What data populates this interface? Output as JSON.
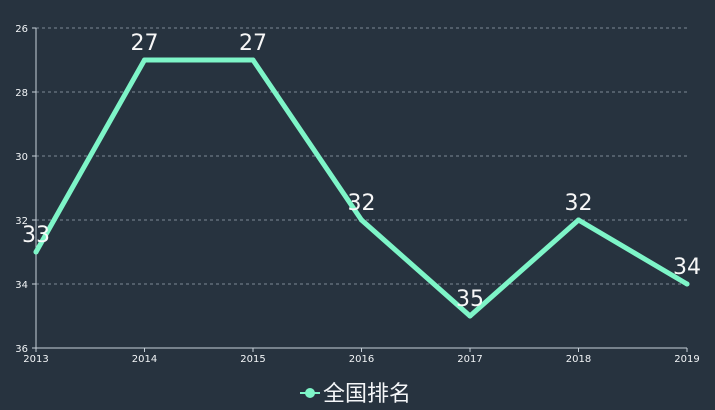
{
  "chart_data": {
    "type": "line",
    "x": [
      "2013",
      "2014",
      "2015",
      "2016",
      "2017",
      "2018",
      "2019"
    ],
    "y_ticks": [
      "26",
      "28",
      "30",
      "32",
      "34",
      "36"
    ],
    "ylim": [
      26,
      36
    ],
    "y_inverted": true,
    "grid": true,
    "legend_placement": "bottom-center",
    "series": [
      {
        "name": "全国排名",
        "values": [
          33,
          27,
          27,
          32,
          35,
          32,
          34
        ],
        "data_labels": [
          "33",
          "27",
          "27",
          "32",
          "35",
          "32",
          "34"
        ],
        "color": "#7ef5c8"
      }
    ]
  },
  "legend": {
    "label": "全国排名"
  }
}
